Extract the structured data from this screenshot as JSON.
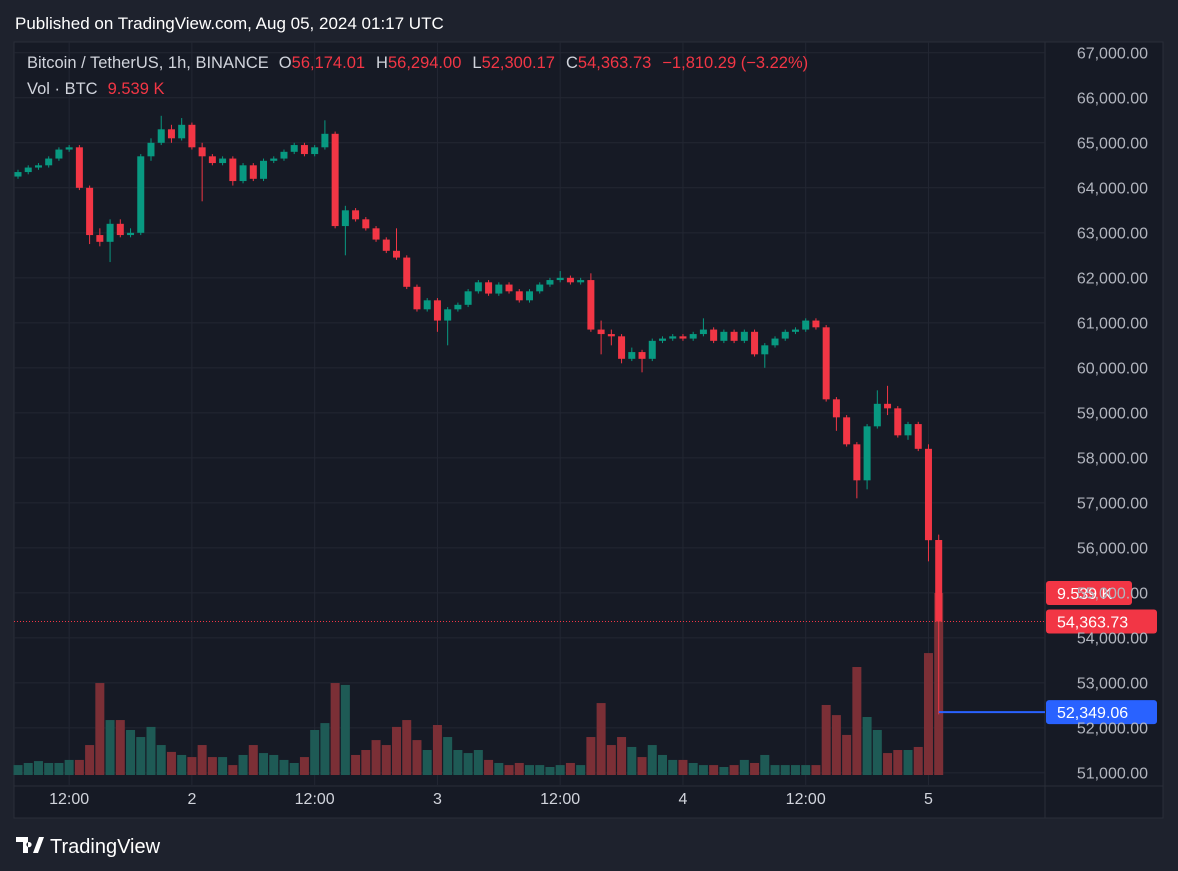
{
  "header": "Published on TradingView.com, Aug 05, 2024 01:17 UTC",
  "footer": "TradingView",
  "chart_data": {
    "type": "candlestick",
    "legend": {
      "symbol": "Bitcoin / TetherUS, 1h, BINANCE",
      "fields": [
        {
          "key": "O",
          "text": "56,174.01"
        },
        {
          "key": "H",
          "text": "56,294.00"
        },
        {
          "key": "L",
          "text": "52,300.17"
        },
        {
          "key": "C",
          "text": "54,363.73"
        }
      ],
      "change": "−1,810.29 (−3.22%)",
      "volume_key": "Vol · BTC",
      "volume_text": "9.539 K"
    },
    "up_color": "#089981",
    "down_color": "#f23645",
    "up_volume_color": "#1e5a55",
    "down_volume_color": "#7b2f36",
    "grid": true,
    "ylim": [
      50730,
      67240
    ],
    "yticks": [
      {
        "value": 51000,
        "label": "51,000.00"
      },
      {
        "value": 52000,
        "label": "52,000.00"
      },
      {
        "value": 53000,
        "label": "53,000.00"
      },
      {
        "value": 54000,
        "label": "54,000.00"
      },
      {
        "value": 55000,
        "label": "55,000.00"
      },
      {
        "value": 56000,
        "label": "56,000.00"
      },
      {
        "value": 57000,
        "label": "57,000.00"
      },
      {
        "value": 58000,
        "label": "58,000.00"
      },
      {
        "value": 59000,
        "label": "59,000.00"
      },
      {
        "value": 60000,
        "label": "60,000.00"
      },
      {
        "value": 61000,
        "label": "61,000.00"
      },
      {
        "value": 62000,
        "label": "62,000.00"
      },
      {
        "value": 63000,
        "label": "63,000.00"
      },
      {
        "value": 64000,
        "label": "64,000.00"
      },
      {
        "value": 65000,
        "label": "65,000.00"
      },
      {
        "value": 66000,
        "label": "66,000.00"
      },
      {
        "value": 67000,
        "label": "67,000.00"
      }
    ],
    "categories": [
      null,
      null,
      null,
      null,
      null,
      "12:00",
      null,
      null,
      null,
      null,
      null,
      null,
      null,
      null,
      null,
      null,
      null,
      "2",
      null,
      null,
      null,
      null,
      null,
      null,
      null,
      null,
      null,
      null,
      null,
      "12:00",
      null,
      null,
      null,
      null,
      null,
      null,
      null,
      null,
      null,
      null,
      null,
      "3",
      null,
      null,
      null,
      null,
      null,
      null,
      null,
      null,
      null,
      null,
      null,
      "12:00",
      null,
      null,
      null,
      null,
      null,
      null,
      null,
      null,
      null,
      null,
      null,
      "4",
      null,
      null,
      null,
      null,
      null,
      null,
      null,
      null,
      null,
      null,
      null,
      "12:00",
      null,
      null,
      null,
      null,
      null,
      null,
      null,
      null,
      null,
      null,
      null,
      "5",
      null
    ],
    "open": [
      64250,
      64350,
      64450,
      64500,
      64650,
      64850,
      64900,
      64000,
      62950,
      62800,
      63200,
      62950,
      63000,
      64700,
      65000,
      65300,
      65100,
      65400,
      64900,
      64700,
      64550,
      64650,
      64150,
      64500,
      64200,
      64600,
      64650,
      64800,
      64950,
      64750,
      64900,
      65200,
      63150,
      63500,
      63300,
      63100,
      62850,
      62600,
      62450,
      61800,
      61300,
      61500,
      61050,
      61300,
      61400,
      61700,
      61900,
      61650,
      61850,
      61700,
      61500,
      61700,
      61850,
      61950,
      62000,
      61900,
      61950,
      60850,
      60750,
      60700,
      60200,
      60350,
      60200,
      60600,
      60650,
      60700,
      60650,
      60750,
      60850,
      60600,
      60800,
      60600,
      60800,
      60300,
      60500,
      60650,
      60800,
      60850,
      61050,
      60900,
      59300,
      58900,
      58300,
      57500,
      58700,
      59200,
      59100,
      58500,
      58750,
      58200,
      56174.01
    ],
    "high": [
      64400,
      64500,
      64550,
      64700,
      64900,
      64950,
      64950,
      64050,
      63100,
      63300,
      63300,
      63100,
      64750,
      65100,
      65600,
      65400,
      65550,
      65450,
      65000,
      64750,
      64700,
      64700,
      64550,
      64550,
      64650,
      64700,
      64850,
      65000,
      65000,
      64950,
      65500,
      65250,
      63600,
      63550,
      63350,
      63150,
      62900,
      63100,
      62500,
      61850,
      61550,
      61550,
      61350,
      61450,
      61750,
      61950,
      61950,
      61900,
      61900,
      61750,
      61750,
      61900,
      62000,
      62150,
      62050,
      62000,
      62100,
      61050,
      60850,
      60750,
      60450,
      60400,
      60650,
      60700,
      60750,
      60750,
      60800,
      61100,
      60900,
      60850,
      60850,
      60850,
      60850,
      60550,
      60700,
      60850,
      60900,
      61100,
      61100,
      60950,
      59350,
      58950,
      58350,
      58750,
      59500,
      59600,
      59150,
      58800,
      58800,
      58300,
      56294
    ],
    "low": [
      64200,
      64300,
      64400,
      64450,
      64600,
      64800,
      63950,
      62750,
      62700,
      62350,
      62900,
      62900,
      62950,
      64600,
      64950,
      65000,
      65050,
      64850,
      63700,
      64500,
      64500,
      64050,
      64100,
      64150,
      64150,
      64550,
      64600,
      64750,
      64700,
      64700,
      64850,
      63100,
      62500,
      63250,
      63050,
      62800,
      62550,
      62400,
      61750,
      61250,
      61250,
      60800,
      60500,
      61250,
      61350,
      61650,
      61600,
      61600,
      61650,
      61450,
      61450,
      61650,
      61800,
      61900,
      61850,
      61850,
      60800,
      60300,
      60500,
      60100,
      60150,
      59900,
      60150,
      60550,
      60600,
      60600,
      60600,
      60700,
      60550,
      60550,
      60550,
      60550,
      60250,
      60000,
      60450,
      60600,
      60750,
      60800,
      60850,
      59250,
      58600,
      58250,
      57100,
      57300,
      58650,
      58950,
      58450,
      58400,
      58150,
      55700,
      52300.17
    ],
    "close": [
      64350,
      64450,
      64500,
      64650,
      64850,
      64900,
      64000,
      62950,
      62800,
      63200,
      62950,
      63000,
      64700,
      65000,
      65300,
      65100,
      65400,
      64900,
      64700,
      64550,
      64650,
      64150,
      64500,
      64200,
      64600,
      64650,
      64800,
      64950,
      64750,
      64900,
      65200,
      63150,
      63500,
      63300,
      63100,
      62850,
      62600,
      62450,
      61800,
      61300,
      61500,
      61050,
      61300,
      61400,
      61700,
      61900,
      61650,
      61850,
      61700,
      61500,
      61700,
      61850,
      61950,
      62000,
      61900,
      61950,
      60850,
      60750,
      60700,
      60200,
      60350,
      60200,
      60600,
      60650,
      60700,
      60650,
      60750,
      60850,
      60600,
      60800,
      60600,
      60800,
      60300,
      60500,
      60650,
      60800,
      60850,
      61050,
      60900,
      59300,
      58900,
      58300,
      57500,
      58700,
      59200,
      59100,
      58500,
      58750,
      58200,
      56170,
      54363.73
    ],
    "volume": [
      520,
      630,
      730,
      630,
      630,
      790,
      790,
      1570,
      4820,
      2880,
      2880,
      2360,
      1990,
      2520,
      1570,
      1210,
      1050,
      940,
      1570,
      940,
      940,
      520,
      1050,
      1570,
      1150,
      1050,
      790,
      630,
      940,
      2360,
      2720,
      4820,
      4720,
      1050,
      1310,
      1830,
      1570,
      2520,
      2880,
      1830,
      1310,
      2620,
      1990,
      1310,
      1150,
      1310,
      790,
      630,
      520,
      630,
      520,
      520,
      420,
      520,
      630,
      520,
      1990,
      3770,
      1570,
      1990,
      1470,
      940,
      1570,
      1050,
      790,
      790,
      630,
      520,
      520,
      420,
      520,
      790,
      630,
      1050,
      520,
      520,
      520,
      520,
      520,
      3670,
      3140,
      2100,
      5660,
      3040,
      2360,
      1150,
      1310,
      1310,
      1470,
      6390,
      9539
    ],
    "volume_tag": "9.539 K",
    "last_price_label": "54,363.73",
    "marker_line": {
      "value": 52349.06,
      "label": "52,349.06",
      "color": "#2962ff"
    }
  }
}
